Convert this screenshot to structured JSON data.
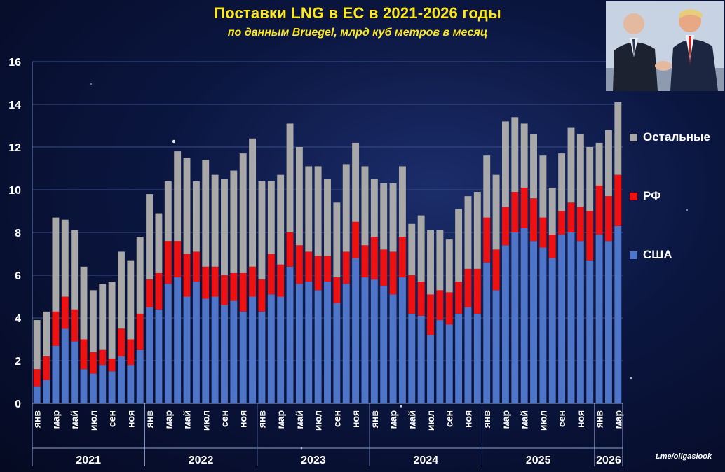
{
  "title": "Поставки  LNG в ЕС в 2021-2026 годы",
  "subtitle": "по данным  Bruegel,  млрд куб метров  в месяц",
  "source": "t.me/oilgaslook",
  "colors": {
    "usa": "#4f75c8",
    "rf": "#ee1111",
    "other": "#a8a8a8",
    "title": "#ffe81a"
  },
  "chart_data": {
    "type": "bar",
    "stacked": true,
    "ylim": [
      0,
      16
    ],
    "yticks": [
      0,
      2,
      4,
      6,
      8,
      10,
      12,
      14,
      16
    ],
    "grid": true,
    "legend_position": "right",
    "x_tick_labels": [
      "янв",
      "мар",
      "май",
      "июл",
      "сен",
      "ноя"
    ],
    "years": [
      {
        "label": "2021",
        "months": 12
      },
      {
        "label": "2022",
        "months": 12
      },
      {
        "label": "2023",
        "months": 12
      },
      {
        "label": "2024",
        "months": 12
      },
      {
        "label": "2025",
        "months": 12
      },
      {
        "label": "2026",
        "months": 3
      }
    ],
    "series": [
      {
        "name": "США",
        "color": "#4f75c8",
        "values": [
          0.8,
          1.1,
          2.7,
          3.5,
          2.9,
          1.6,
          1.4,
          1.8,
          1.5,
          2.2,
          1.8,
          2.5,
          4.5,
          4.4,
          5.6,
          5.9,
          5.0,
          5.7,
          4.9,
          5.0,
          4.6,
          4.8,
          4.3,
          5.0,
          4.3,
          5.1,
          5.0,
          6.4,
          5.6,
          5.7,
          5.3,
          5.7,
          4.7,
          5.6,
          6.8,
          5.9,
          5.8,
          5.5,
          5.1,
          5.9,
          4.2,
          4.1,
          3.2,
          3.9,
          3.7,
          4.2,
          4.5,
          4.2,
          6.6,
          5.3,
          7.4,
          8.0,
          8.2,
          7.6,
          7.3,
          6.8,
          7.9,
          8.0,
          7.6,
          6.7,
          7.9,
          7.6,
          8.3
        ]
      },
      {
        "name": "РФ",
        "color": "#ee1111",
        "values": [
          0.8,
          1.1,
          1.6,
          1.5,
          1.5,
          1.4,
          1.0,
          0.7,
          0.6,
          1.3,
          1.2,
          1.7,
          1.3,
          1.7,
          2.0,
          1.7,
          2.0,
          1.4,
          1.5,
          1.4,
          1.4,
          1.3,
          1.8,
          1.4,
          1.5,
          1.9,
          1.5,
          1.6,
          1.8,
          1.4,
          1.6,
          1.2,
          1.2,
          1.5,
          1.7,
          1.5,
          2.0,
          1.7,
          2.0,
          1.9,
          1.8,
          1.6,
          1.9,
          1.4,
          1.5,
          1.5,
          1.8,
          2.1,
          2.1,
          1.9,
          1.8,
          1.9,
          1.9,
          2.0,
          1.4,
          1.1,
          1.1,
          1.4,
          1.6,
          2.3,
          2.3,
          2.1,
          2.4
        ]
      },
      {
        "name": "Остальные",
        "color": "#a8a8a8",
        "values": [
          2.3,
          2.1,
          4.4,
          3.6,
          3.7,
          3.4,
          2.9,
          3.1,
          3.6,
          3.6,
          3.7,
          3.6,
          4.0,
          2.8,
          2.8,
          4.2,
          4.5,
          3.3,
          5.0,
          4.3,
          4.5,
          4.8,
          5.6,
          6.0,
          4.6,
          3.4,
          4.2,
          5.1,
          4.6,
          4.0,
          4.2,
          3.6,
          3.5,
          4.1,
          3.7,
          3.7,
          2.7,
          3.1,
          3.2,
          3.3,
          2.4,
          3.1,
          3.0,
          2.8,
          2.5,
          3.4,
          3.4,
          3.6,
          2.9,
          3.5,
          4.0,
          3.5,
          3.0,
          3.0,
          2.9,
          2.2,
          2.7,
          3.5,
          3.4,
          3.0,
          2.0,
          3.1,
          3.4
        ]
      }
    ]
  }
}
